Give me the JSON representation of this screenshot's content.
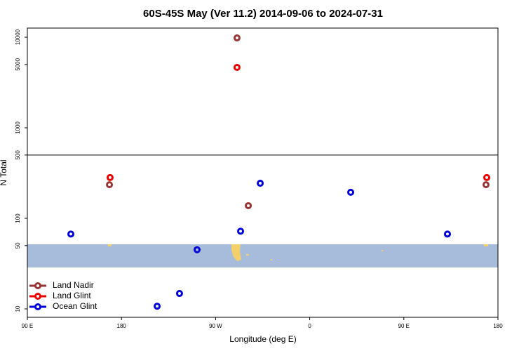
{
  "chart_data": {
    "type": "scatter",
    "title": "60S-45S May (Ver 11.2)   2014-09-06 to 2024-07-31",
    "x_label": "Longitude (deg E)",
    "y_label": "N Total",
    "log_y": true,
    "xlim": [
      90,
      540
    ],
    "ylim": [
      8.07,
      12620
    ],
    "xticks": [
      {
        "value": 90,
        "label": "90 E"
      },
      180,
      {
        "value": 270,
        "label": "90 W"
      },
      {
        "value": 360,
        "label": "0"
      },
      {
        "value": 450,
        "label": "90 E"
      },
      {
        "value": 540,
        "label": "180"
      }
    ],
    "yticks": [
      10,
      50,
      100,
      500,
      1000,
      5000,
      10000
    ],
    "hline": 500,
    "legend": "bottom-left",
    "series": [
      {
        "name": "Land Nadir",
        "color": "#993333",
        "x": [
          168.5,
          290.5,
          301.3,
          528.6
        ],
        "values": [
          235,
          9820,
          138,
          235
        ]
      },
      {
        "name": "Land Glint",
        "color": "#ee0000",
        "x": [
          169.1,
          290.5,
          529.3
        ],
        "values": [
          282,
          4645,
          282
        ]
      },
      {
        "name": "Ocean Glint",
        "color": "#0000dd",
        "x": [
          131.6,
          252.3,
          214.1,
          235.5,
          293.9,
          312.7,
          399.2,
          491.7
        ],
        "values": [
          67,
          45,
          10.7,
          14.8,
          72,
          244,
          194,
          67
        ]
      }
    ]
  }
}
